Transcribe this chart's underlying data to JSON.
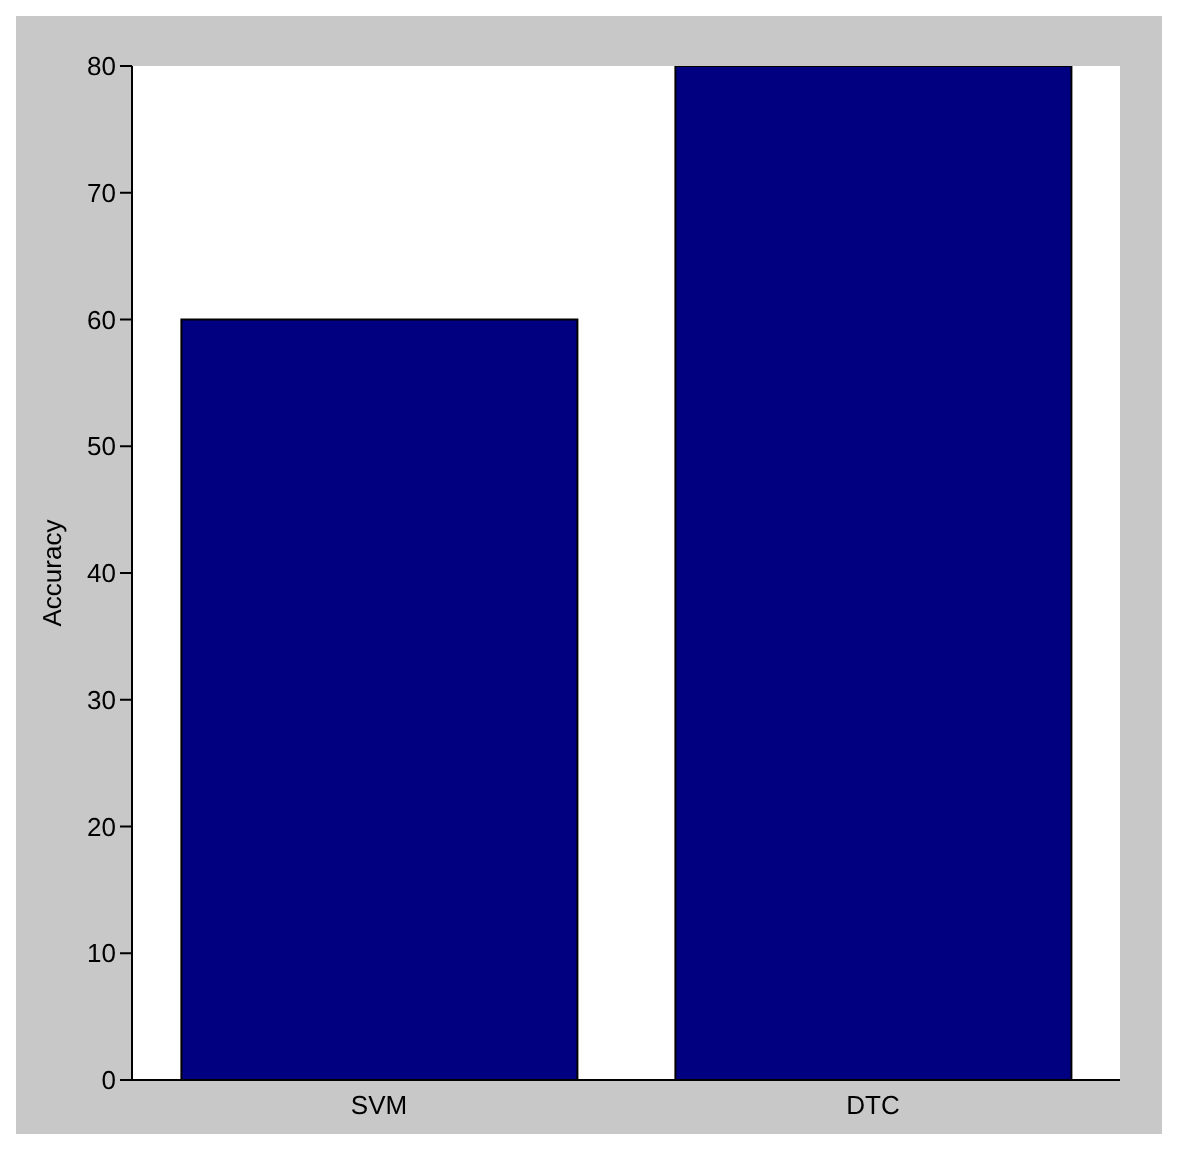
{
  "chart_data": {
    "type": "bar",
    "categories": [
      "SVM",
      "DTC"
    ],
    "values": [
      60,
      80
    ],
    "color": "#000080",
    "ylabel": "Accuracy",
    "ylim": [
      0,
      80
    ],
    "yticks": [
      0,
      10,
      20,
      30,
      40,
      50,
      60,
      70,
      80
    ]
  }
}
